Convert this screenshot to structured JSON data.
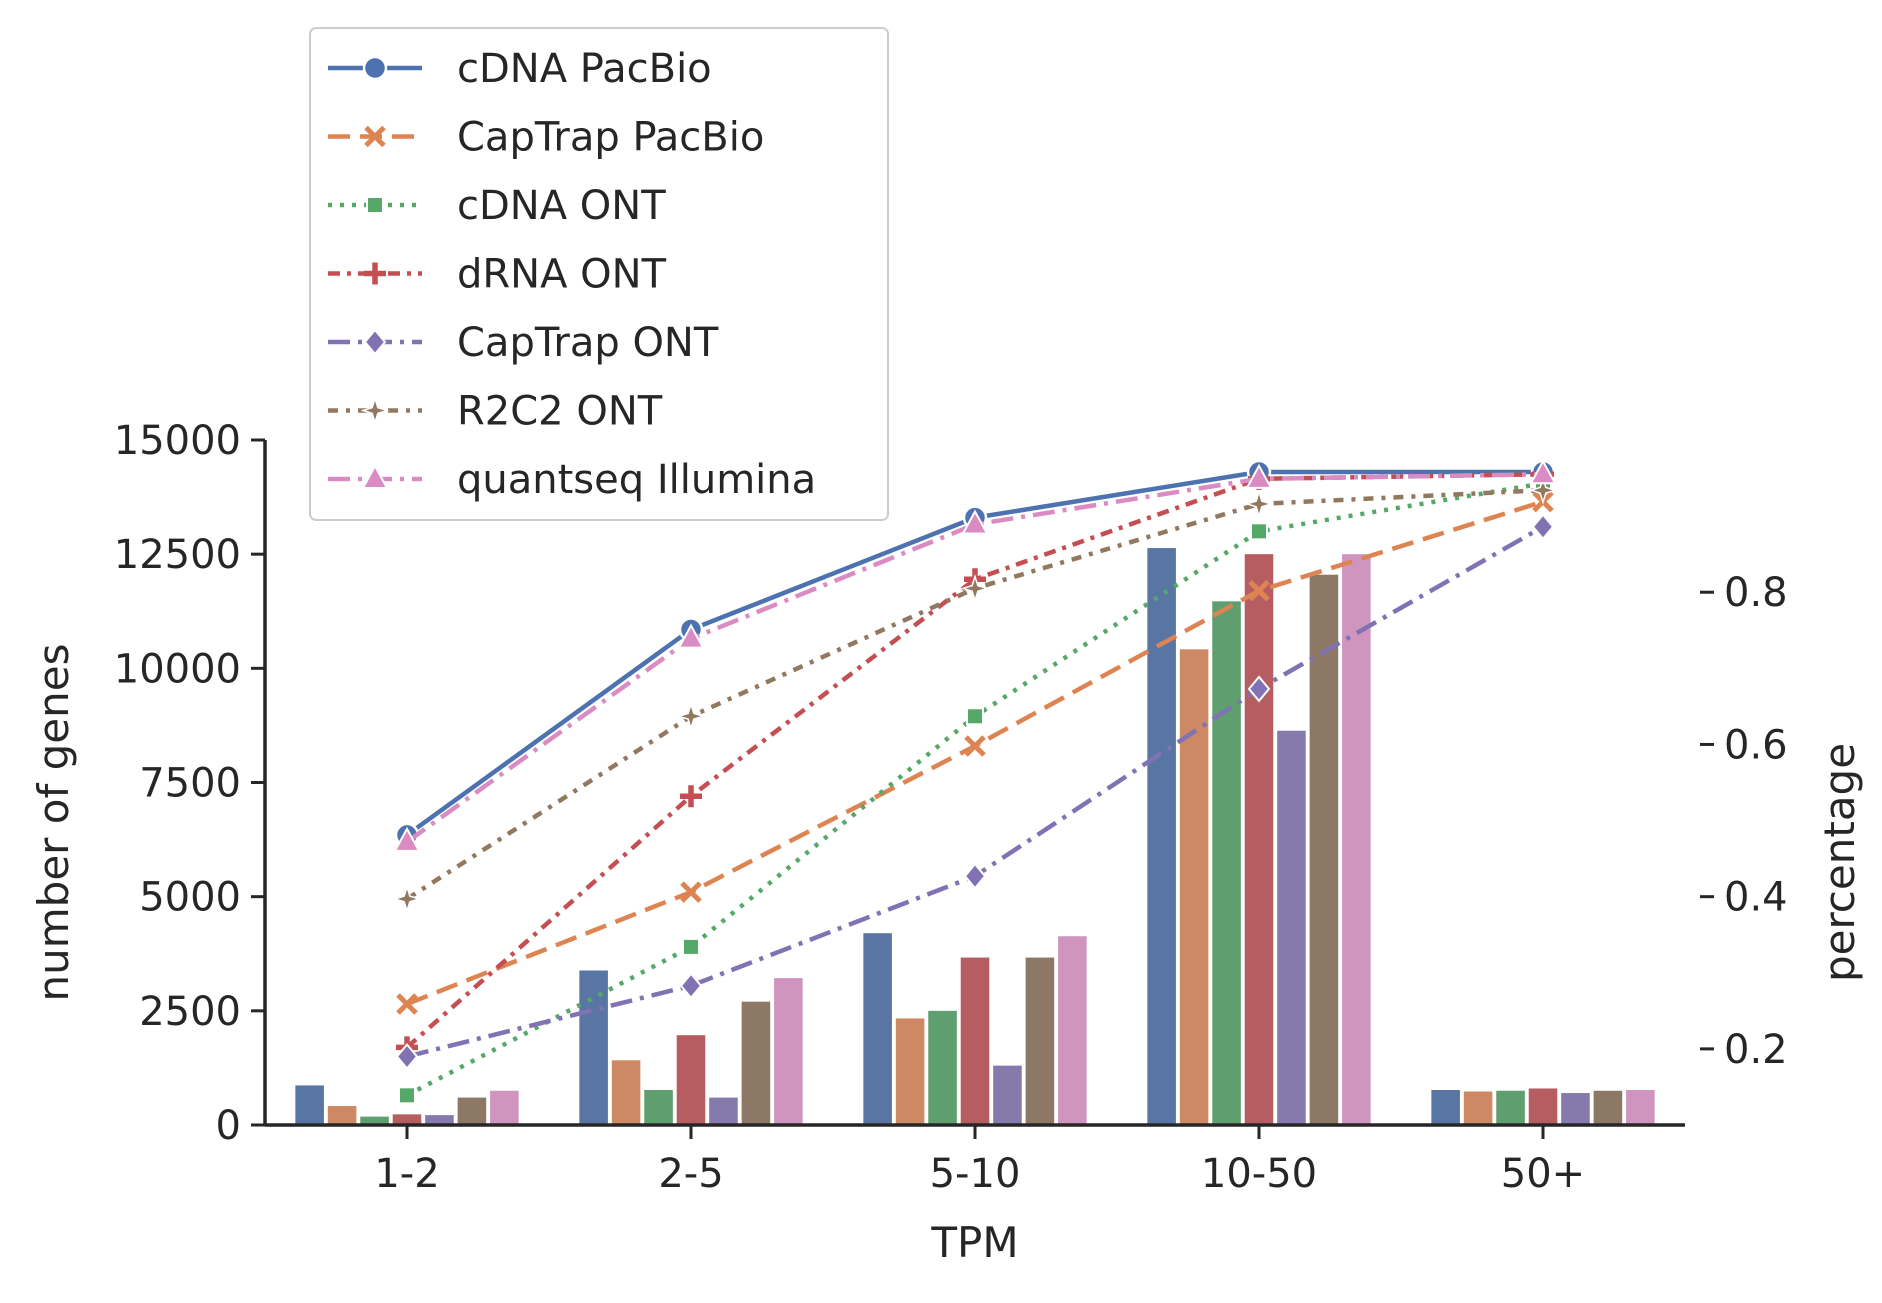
{
  "chart_data": {
    "type": "line",
    "categories": [
      "1-2",
      "2-5",
      "5-10",
      "10-50",
      "50+"
    ],
    "xlabel": "TPM",
    "ylabel": "number of genes",
    "y2label": "percentage",
    "ylim": [
      0,
      15000
    ],
    "y2lim": [
      0.1,
      1.0
    ],
    "yticks": [
      "0",
      "2500",
      "5000",
      "7500",
      "10000",
      "12500",
      "15000"
    ],
    "y2ticks": [
      "0.2",
      "0.4",
      "0.6",
      "0.8"
    ],
    "grid": false,
    "legend_position": "top-left",
    "series": [
      {
        "name": "cDNA PacBio",
        "color": "#4c72b0",
        "marker": "circle",
        "dash": "solid",
        "values": [
          6350,
          10850,
          13300,
          14300,
          14300
        ],
        "bars": [
          0.152,
          0.303,
          0.352,
          0.858,
          0.146
        ]
      },
      {
        "name": "CapTrap PacBio",
        "color": "#dd8452",
        "marker": "x",
        "dash": "dashed",
        "values": [
          2650,
          5100,
          8300,
          11700,
          13650
        ],
        "bars": [
          0.125,
          0.185,
          0.24,
          0.725,
          0.144
        ]
      },
      {
        "name": "cDNA ONT",
        "color": "#55a868",
        "marker": "square",
        "dash": "dotted",
        "values": [
          650,
          3900,
          8950,
          13000,
          14050
        ],
        "bars": [
          0.111,
          0.146,
          0.25,
          0.788,
          0.145
        ]
      },
      {
        "name": "dRNA ONT",
        "color": "#c44e52",
        "marker": "plus",
        "dash": "dashdot-short",
        "values": [
          1700,
          7200,
          11950,
          14150,
          14250
        ],
        "bars": [
          0.114,
          0.218,
          0.32,
          0.85,
          0.148
        ]
      },
      {
        "name": "CapTrap ONT",
        "color": "#8172b3",
        "marker": "diamond",
        "dash": "dashdot",
        "values": [
          1500,
          3050,
          5450,
          9550,
          13100
        ],
        "bars": [
          0.113,
          0.136,
          0.178,
          0.618,
          0.142
        ]
      },
      {
        "name": "R2C2 ONT",
        "color": "#937860",
        "marker": "star",
        "dash": "dashdot-dense",
        "values": [
          4950,
          8950,
          11750,
          13600,
          13900
        ],
        "bars": [
          0.136,
          0.262,
          0.32,
          0.823,
          0.145
        ]
      },
      {
        "name": "quantseq Illumina",
        "color": "#da8bc3",
        "marker": "triangle",
        "dash": "dashdot",
        "values": [
          6200,
          10650,
          13150,
          14150,
          14250
        ],
        "bars": [
          0.145,
          0.293,
          0.348,
          0.85,
          0.146
        ]
      }
    ]
  }
}
